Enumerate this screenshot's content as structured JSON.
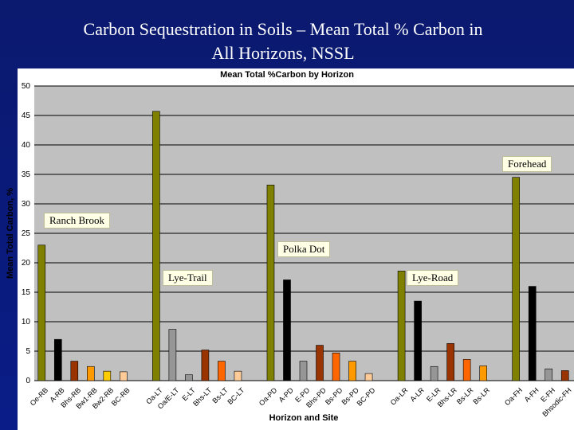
{
  "slide": {
    "title_line1": "Carbon Sequestration in Soils – Mean Total % Carbon in",
    "title_line2": "All Horizons, NSSL"
  },
  "site_labels": [
    {
      "text": "Forehead"
    },
    {
      "text": "Ranch Brook"
    },
    {
      "text": "Polka Dot"
    },
    {
      "text": "Lye-Trail"
    },
    {
      "text": "Lye-Road"
    }
  ],
  "chart_data": {
    "type": "bar",
    "title": "Mean Total %Carbon by Horizon",
    "xlabel": "Horizon and Site",
    "ylabel": "Mean Total Carbon, %",
    "ylim": [
      0,
      50
    ],
    "yticks": [
      0,
      5,
      10,
      15,
      20,
      25,
      30,
      35,
      40,
      45,
      50
    ],
    "grid": true,
    "legend": "none",
    "colors": {
      "olive": "#808000",
      "black": "#000000",
      "gray": "#969696",
      "brown": "#993300",
      "orange": "#ff6600",
      "lightorange": "#ff9900",
      "yellow": "#ffcc00",
      "peach": "#ffcc99",
      "plot_bg": "#c0c0c0",
      "grid": "#000000"
    },
    "bars": [
      {
        "category": "Oe-RB",
        "value": 23.0,
        "color": "#808000"
      },
      {
        "category": "A-RB",
        "value": 7.0,
        "color": "#000000"
      },
      {
        "category": "Bhs-RB",
        "value": 3.3,
        "color": "#993300"
      },
      {
        "category": "Bw1-RB",
        "value": 2.4,
        "color": "#ff9900"
      },
      {
        "category": "Bw2-RB",
        "value": 1.6,
        "color": "#ffcc00"
      },
      {
        "category": "BC-RB",
        "value": 1.5,
        "color": "#ffcc99"
      },
      {
        "category": "",
        "value": null,
        "color": ""
      },
      {
        "category": "Oa-LT",
        "value": 45.7,
        "color": "#808000"
      },
      {
        "category": "Oa/E-LT",
        "value": 8.7,
        "color": "#969696"
      },
      {
        "category": "E-LT",
        "value": 1.0,
        "color": "#969696"
      },
      {
        "category": "Bhs-LT",
        "value": 5.2,
        "color": "#993300"
      },
      {
        "category": "Bs-LT",
        "value": 3.3,
        "color": "#ff6600"
      },
      {
        "category": "BC-LT",
        "value": 1.6,
        "color": "#ffcc99"
      },
      {
        "category": "",
        "value": null,
        "color": ""
      },
      {
        "category": "Oa-PD",
        "value": 33.2,
        "color": "#808000"
      },
      {
        "category": "A-PD",
        "value": 17.1,
        "color": "#000000"
      },
      {
        "category": "E-PD",
        "value": 3.3,
        "color": "#969696"
      },
      {
        "category": "Bhs-PD",
        "value": 6.0,
        "color": "#993300"
      },
      {
        "category": "Bs-PD",
        "value": 4.7,
        "color": "#ff6600"
      },
      {
        "category": "Bs-PD",
        "value": 3.3,
        "color": "#ff9900"
      },
      {
        "category": "BC-PD",
        "value": 1.2,
        "color": "#ffcc99"
      },
      {
        "category": "",
        "value": null,
        "color": ""
      },
      {
        "category": "Oa-LR",
        "value": 18.6,
        "color": "#808000"
      },
      {
        "category": "A-LR",
        "value": 13.5,
        "color": "#000000"
      },
      {
        "category": "E-LR",
        "value": 2.4,
        "color": "#969696"
      },
      {
        "category": "Bhs-LR",
        "value": 6.3,
        "color": "#993300"
      },
      {
        "category": "Bs-LR",
        "value": 3.6,
        "color": "#ff6600"
      },
      {
        "category": "Bs-LR",
        "value": 2.5,
        "color": "#ff9900"
      },
      {
        "category": "",
        "value": null,
        "color": ""
      },
      {
        "category": "Oa-FH",
        "value": 34.5,
        "color": "#808000"
      },
      {
        "category": "A-FH",
        "value": 16.0,
        "color": "#000000"
      },
      {
        "category": "E-FH",
        "value": 2.0,
        "color": "#969696"
      },
      {
        "category": "Bhsodic-FH",
        "value": 1.7,
        "color": "#993300"
      }
    ]
  }
}
